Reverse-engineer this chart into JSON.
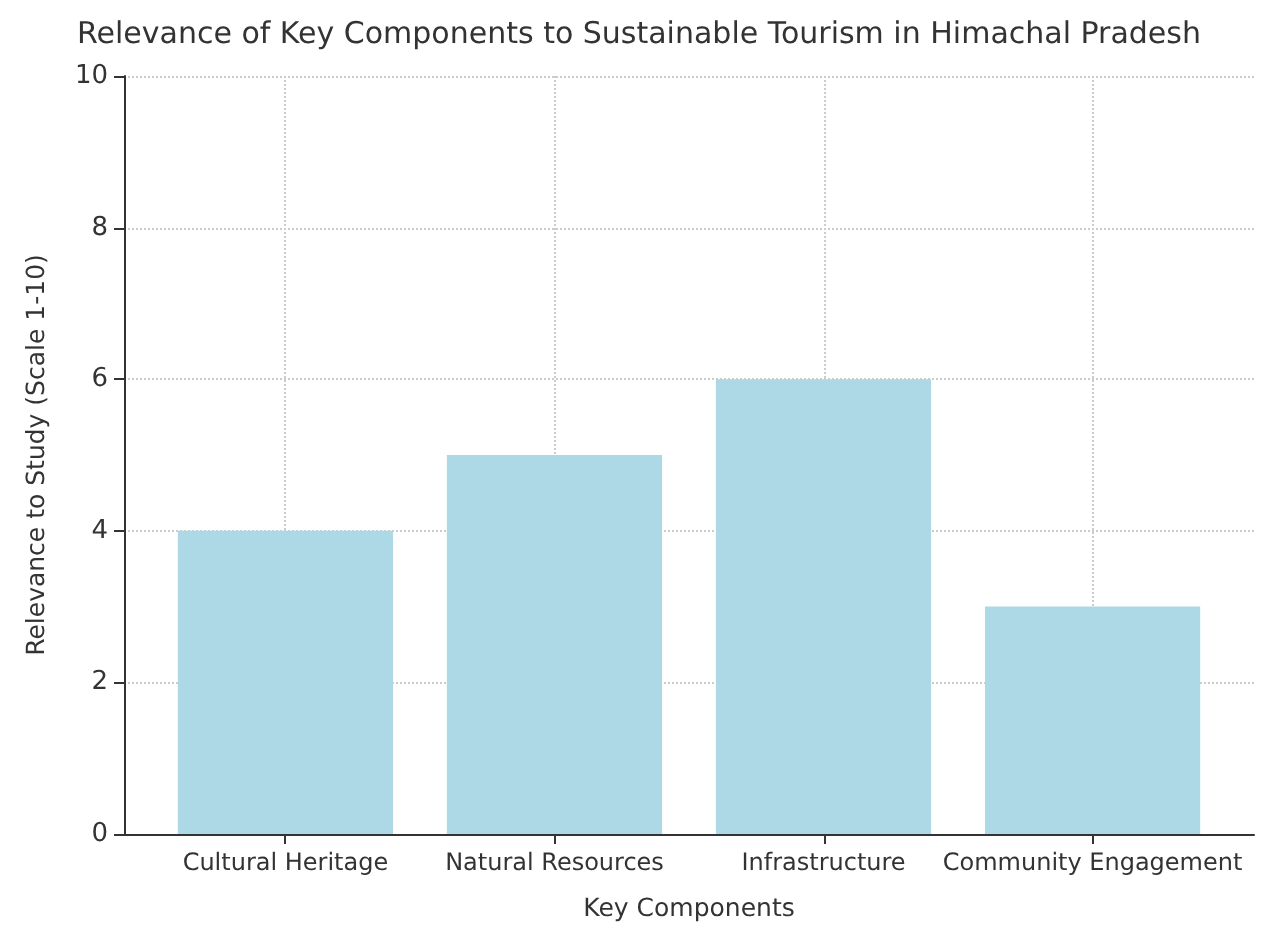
{
  "chart_data": {
    "type": "bar",
    "title": "Relevance of Key Components to Sustainable Tourism in Himachal Pradesh",
    "xlabel": "Key Components",
    "ylabel": "Relevance to Study (Scale 1-10)",
    "categories": [
      "Cultural Heritage",
      "Natural Resources",
      "Infrastructure",
      "Community Engagement"
    ],
    "values": [
      4,
      5,
      6,
      3
    ],
    "color": "#add8e6",
    "ylim": [
      0,
      10
    ],
    "yticks": [
      0,
      2,
      4,
      6,
      8,
      10
    ],
    "grid": true
  }
}
